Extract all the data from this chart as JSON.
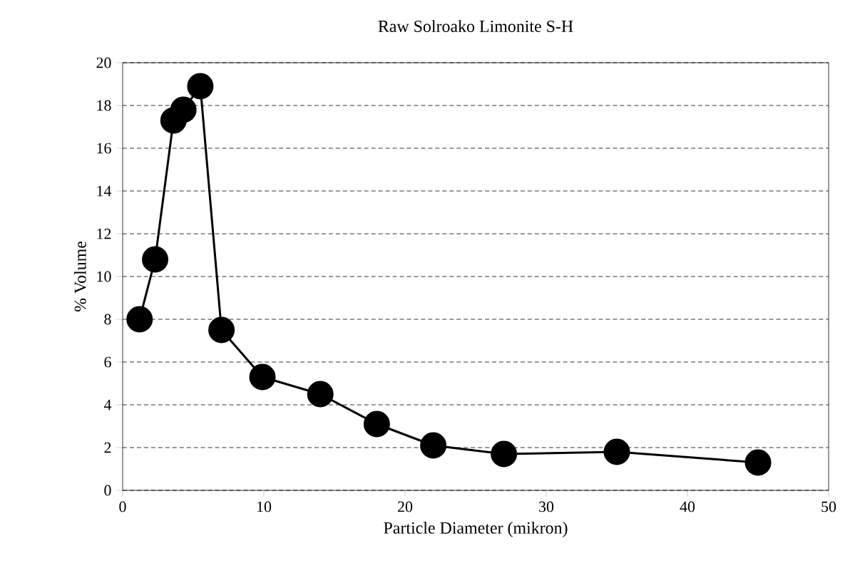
{
  "chart_data": {
    "type": "line",
    "title": "Raw Solroako Limonite S-H",
    "xlabel": "Particle Diameter (mikron)",
    "ylabel": "% Volume",
    "x": [
      1.2,
      2.3,
      3.6,
      4.3,
      5.5,
      7.0,
      9.9,
      14,
      18,
      22,
      27,
      35,
      45
    ],
    "values": [
      8.0,
      10.8,
      17.3,
      17.8,
      18.9,
      7.5,
      5.3,
      4.5,
      3.1,
      2.1,
      1.7,
      1.8,
      1.3
    ],
    "color": "#000000",
    "marker": "circle",
    "line_style": "solid",
    "grid": "y",
    "xlim": [
      0,
      50
    ],
    "xticks": [
      0,
      10,
      20,
      30,
      40,
      50
    ],
    "ylim": [
      0,
      20
    ],
    "yticks": [
      0,
      2,
      4,
      6,
      8,
      10,
      12,
      14,
      16,
      18,
      20
    ]
  }
}
